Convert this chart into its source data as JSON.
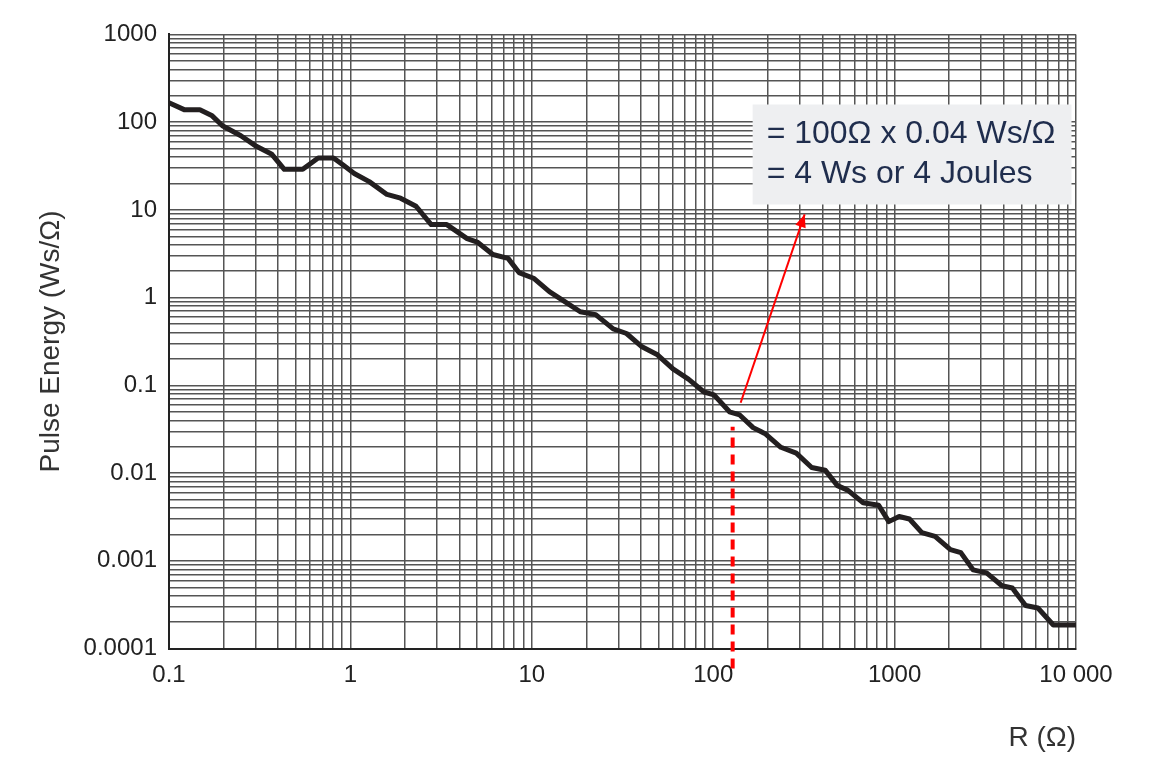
{
  "chart_data": {
    "type": "line",
    "xlabel": "R (Ω)",
    "ylabel": "Pulse Energy (Ws/Ω)",
    "log": "xy",
    "grid": true,
    "legend": false,
    "marker": "none",
    "line_style": "solid",
    "xlim": [
      0.1,
      10000
    ],
    "ylim": [
      0.0001,
      1000
    ],
    "xticks": [
      0.1,
      {
        "value": 0.2,
        "label": null
      },
      {
        "value": 0.3,
        "label": null
      },
      {
        "value": 0.4,
        "label": null
      },
      {
        "value": 0.5,
        "label": null
      },
      {
        "value": 0.6,
        "label": null
      },
      {
        "value": 0.7,
        "label": null
      },
      {
        "value": 0.8,
        "label": null
      },
      {
        "value": 0.9,
        "label": null
      },
      1,
      {
        "value": 2,
        "label": null
      },
      {
        "value": 3,
        "label": null
      },
      {
        "value": 4,
        "label": null
      },
      {
        "value": 5,
        "label": null
      },
      {
        "value": 6,
        "label": null
      },
      {
        "value": 7,
        "label": null
      },
      {
        "value": 8,
        "label": null
      },
      {
        "value": 9,
        "label": null
      },
      10,
      {
        "value": 20,
        "label": null
      },
      {
        "value": 30,
        "label": null
      },
      {
        "value": 40,
        "label": null
      },
      {
        "value": 50,
        "label": null
      },
      {
        "value": 60,
        "label": null
      },
      {
        "value": 70,
        "label": null
      },
      {
        "value": 80,
        "label": null
      },
      {
        "value": 90,
        "label": null
      },
      100,
      {
        "value": 200,
        "label": null
      },
      {
        "value": 300,
        "label": null
      },
      {
        "value": 400,
        "label": null
      },
      {
        "value": 500,
        "label": null
      },
      {
        "value": 600,
        "label": null
      },
      {
        "value": 700,
        "label": null
      },
      {
        "value": 800,
        "label": null
      },
      {
        "value": 900,
        "label": null
      },
      1000,
      {
        "value": 2000,
        "label": null
      },
      {
        "value": 3000,
        "label": null
      },
      {
        "value": 4000,
        "label": null
      },
      {
        "value": 5000,
        "label": null
      },
      {
        "value": 6000,
        "label": null
      },
      {
        "value": 7000,
        "label": null
      },
      {
        "value": 8000,
        "label": null
      },
      {
        "value": 9000,
        "label": null
      },
      {
        "value": 10000,
        "label": "10 000"
      }
    ],
    "yticks": [
      0.0001,
      {
        "value": 0.0002,
        "label": null
      },
      {
        "value": 0.0003,
        "label": null
      },
      {
        "value": 0.0004,
        "label": null
      },
      {
        "value": 0.0005,
        "label": null
      },
      {
        "value": 0.0006,
        "label": null
      },
      {
        "value": 0.0007,
        "label": null
      },
      {
        "value": 0.0008,
        "label": null
      },
      {
        "value": 0.0009,
        "label": null
      },
      0.001,
      {
        "value": 0.002,
        "label": null
      },
      {
        "value": 0.003,
        "label": null
      },
      {
        "value": 0.004,
        "label": null
      },
      {
        "value": 0.005,
        "label": null
      },
      {
        "value": 0.006,
        "label": null
      },
      {
        "value": 0.007,
        "label": null
      },
      {
        "value": 0.008,
        "label": null
      },
      {
        "value": 0.009,
        "label": null
      },
      0.01,
      {
        "value": 0.02,
        "label": null
      },
      {
        "value": 0.03,
        "label": null
      },
      {
        "value": 0.04,
        "label": null
      },
      {
        "value": 0.05,
        "label": null
      },
      {
        "value": 0.06,
        "label": null
      },
      {
        "value": 0.07,
        "label": null
      },
      {
        "value": 0.08,
        "label": null
      },
      {
        "value": 0.09,
        "label": null
      },
      0.1,
      {
        "value": 0.2,
        "label": null
      },
      {
        "value": 0.3,
        "label": null
      },
      {
        "value": 0.4,
        "label": null
      },
      {
        "value": 0.5,
        "label": null
      },
      {
        "value": 0.6,
        "label": null
      },
      {
        "value": 0.7,
        "label": null
      },
      {
        "value": 0.8,
        "label": null
      },
      {
        "value": 0.9,
        "label": null
      },
      1,
      {
        "value": 2,
        "label": null
      },
      {
        "value": 3,
        "label": null
      },
      {
        "value": 4,
        "label": null
      },
      {
        "value": 5,
        "label": null
      },
      {
        "value": 6,
        "label": null
      },
      {
        "value": 7,
        "label": null
      },
      {
        "value": 8,
        "label": null
      },
      {
        "value": 9,
        "label": null
      },
      10,
      {
        "value": 20,
        "label": null
      },
      {
        "value": 30,
        "label": null
      },
      {
        "value": 40,
        "label": null
      },
      {
        "value": 50,
        "label": null
      },
      {
        "value": 60,
        "label": null
      },
      {
        "value": 70,
        "label": null
      },
      {
        "value": 80,
        "label": null
      },
      {
        "value": 90,
        "label": null
      },
      100,
      {
        "value": 200,
        "label": null
      },
      {
        "value": 300,
        "label": null
      },
      {
        "value": 400,
        "label": null
      },
      {
        "value": 500,
        "label": null
      },
      {
        "value": 600,
        "label": null
      },
      {
        "value": 700,
        "label": null
      },
      {
        "value": 800,
        "label": null
      },
      {
        "value": 900,
        "label": null
      },
      1000
    ],
    "series": [
      {
        "color": "#231f20",
        "x": [
          0.1,
          0.122,
          0.148,
          0.173,
          0.197,
          0.249,
          0.303,
          0.369,
          0.432,
          0.546,
          0.664,
          0.807,
          0.92,
          1.05,
          1.27,
          1.59,
          1.89,
          2.3,
          2.79,
          3.4,
          4.4,
          5.0,
          6.1,
          7.4,
          8.5,
          10.3,
          12.5,
          15.2,
          18.5,
          22.5,
          28.1,
          33.3,
          40.5,
          49.3,
          60,
          73,
          89,
          101,
          123,
          140,
          166,
          194,
          236,
          287,
          349,
          414,
          484,
          551,
          671,
          817,
          929,
          1059,
          1208,
          1413,
          1671,
          2032,
          2317,
          2710,
          3214,
          3908,
          4457,
          5272,
          6166,
          7499,
          10000
        ],
        "values": [
          166,
          138,
          138,
          118,
          91,
          70,
          53,
          43,
          29,
          29,
          39,
          39,
          32,
          26,
          21,
          15,
          13.6,
          11,
          6.8,
          6.8,
          4.7,
          4.3,
          3.1,
          2.8,
          1.93,
          1.65,
          1.17,
          0.9,
          0.69,
          0.64,
          0.44,
          0.39,
          0.275,
          0.223,
          0.154,
          0.118,
          0.084,
          0.078,
          0.05,
          0.046,
          0.033,
          0.028,
          0.0197,
          0.0169,
          0.0116,
          0.0108,
          0.0072,
          0.0064,
          0.0046,
          0.0043,
          0.0028,
          0.0032,
          0.003,
          0.0021,
          0.0019,
          0.00134,
          0.00124,
          0.00079,
          0.00073,
          0.00052,
          0.00049,
          0.00031,
          0.00029,
          0.000186,
          0.000186
        ]
      }
    ],
    "ref_lines": [
      {
        "axis": "x",
        "value": 128,
        "color": "#ff0000",
        "line_style": "dashed"
      }
    ],
    "annotations": [
      "= 100Ω x 0.04 Ws/Ω",
      "= 4 Ws or 4 Joules"
    ]
  }
}
